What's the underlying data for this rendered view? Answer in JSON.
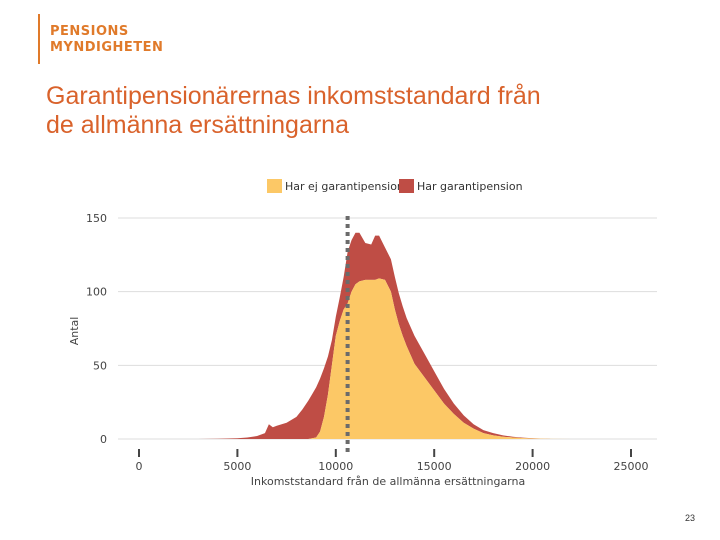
{
  "logo": {
    "line1": "PENSIONS",
    "line2": "MYNDIGHETEN"
  },
  "title": {
    "line1": "Garantipensionärernas inkomststandard från",
    "line2": "de allmänna ersättningarna"
  },
  "page_number": "23",
  "colors": {
    "brand": "#e07a2a",
    "title": "#d9622b",
    "har_ej": "#fcc866",
    "har": "#bf4d45",
    "marker": "#6b6b6b",
    "grid": "#dddddd"
  },
  "chart_data": {
    "type": "area",
    "stacked": true,
    "xlabel": "Inkomststandard från de allmänna ersättningarna",
    "ylabel": "Antal",
    "xlim": [
      0,
      25000
    ],
    "ylim": [
      0,
      150
    ],
    "x_ticks": [
      0,
      5000,
      10000,
      15000,
      20000,
      25000
    ],
    "x_tick_labels": [
      "0",
      "5000",
      "10000",
      "15000",
      "20000",
      "25000"
    ],
    "y_ticks": [
      0,
      50,
      100,
      150
    ],
    "y_tick_labels": [
      "0",
      "50",
      "100",
      "150"
    ],
    "grid": true,
    "legend_position": "top",
    "reference_line_x": 10600,
    "x": [
      0,
      1000,
      2000,
      3000,
      4000,
      5000,
      5500,
      6000,
      6400,
      6600,
      6800,
      7000,
      7500,
      8000,
      8300,
      8600,
      8800,
      9000,
      9200,
      9400,
      9600,
      9800,
      10000,
      10200,
      10400,
      10600,
      10800,
      11000,
      11200,
      11500,
      11800,
      12000,
      12200,
      12500,
      12800,
      13000,
      13200,
      13400,
      13600,
      13800,
      14000,
      14500,
      15000,
      15500,
      16000,
      16500,
      17000,
      17500,
      18000,
      18500,
      19000,
      19500,
      20000,
      21000,
      22000,
      23000,
      24000,
      25000
    ],
    "series": [
      {
        "name": "Har ej garantipension",
        "values": [
          0,
          0,
          0,
          0,
          0,
          0,
          0,
          0,
          0,
          0,
          0,
          0,
          0,
          0,
          0,
          0,
          0.5,
          1,
          5,
          15,
          30,
          50,
          70,
          80,
          88,
          92,
          100,
          105,
          107,
          108,
          108,
          108,
          109,
          108,
          100,
          88,
          78,
          70,
          63,
          57,
          51,
          42,
          33,
          24,
          17,
          11,
          7,
          4,
          2.5,
          1.5,
          1,
          0.6,
          0.3,
          0.1,
          0,
          0,
          0,
          0
        ]
      },
      {
        "name": "Har garantipension",
        "values": [
          0,
          0,
          0,
          0,
          0.2,
          0.5,
          1,
          2,
          4,
          10,
          8,
          9,
          11,
          15,
          20,
          26,
          30,
          34,
          36,
          33,
          26,
          17,
          13,
          16,
          22,
          35,
          35,
          35,
          33,
          25,
          24,
          30,
          29,
          22,
          22,
          22,
          21,
          20,
          19,
          19,
          19,
          16,
          13,
          10,
          7,
          5,
          3,
          2,
          1.5,
          1,
          0.5,
          0.3,
          0.2,
          0,
          0,
          0,
          0,
          0
        ]
      }
    ]
  }
}
